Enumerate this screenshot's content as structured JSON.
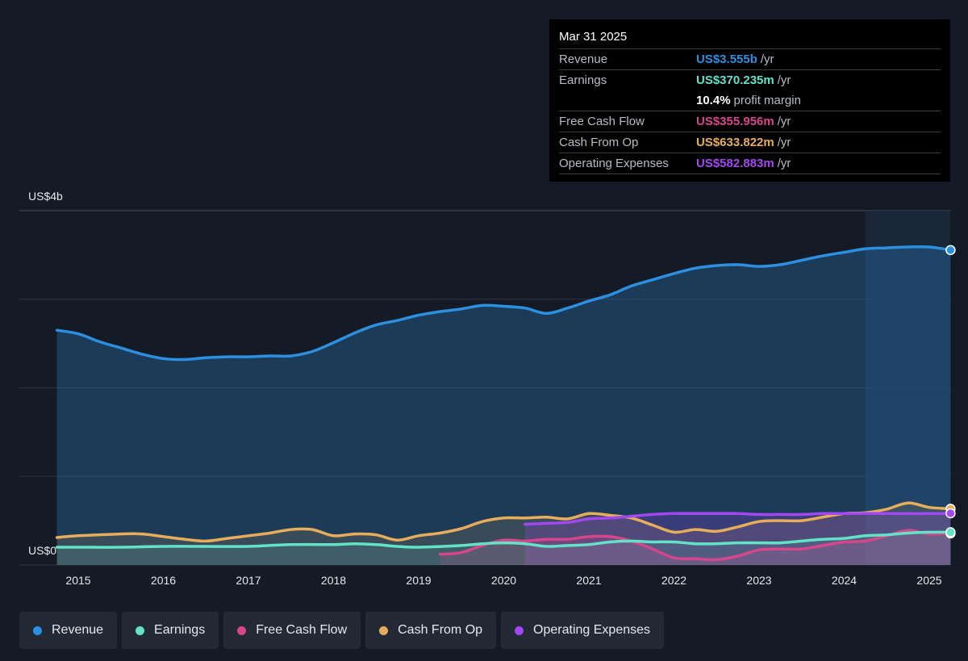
{
  "tooltip": {
    "date": "Mar 31 2025",
    "rows": [
      {
        "label": "Revenue",
        "value": "US$3.555b",
        "unit": "/yr",
        "color": "#2d8fe0"
      },
      {
        "label": "Earnings",
        "value": "US$370.235m",
        "unit": "/yr",
        "color": "#62e3c6"
      },
      {
        "label": "",
        "value": "10.4%",
        "unit": "profit margin",
        "color": "#ffffff"
      },
      {
        "label": "Free Cash Flow",
        "value": "US$355.956m",
        "unit": "/yr",
        "color": "#d6468b"
      },
      {
        "label": "Cash From Op",
        "value": "US$633.822m",
        "unit": "/yr",
        "color": "#e8ad5a"
      },
      {
        "label": "Operating Expenses",
        "value": "US$582.883m",
        "unit": "/yr",
        "color": "#a347f0"
      }
    ]
  },
  "chart_data": {
    "type": "area",
    "y_top_label": "US$4b",
    "y_bottom_label": "US$0",
    "ylim": [
      0,
      4.0
    ],
    "x_ticks": [
      "2015",
      "2016",
      "2017",
      "2018",
      "2019",
      "2020",
      "2021",
      "2022",
      "2023",
      "2024",
      "2025"
    ],
    "grid": true,
    "legend_position": "bottom",
    "series": [
      {
        "name": "Revenue",
        "color": "#2d8fe0",
        "points": [
          [
            2014.75,
            2.65
          ],
          [
            2015.0,
            2.61
          ],
          [
            2015.25,
            2.52
          ],
          [
            2015.5,
            2.45
          ],
          [
            2015.75,
            2.38
          ],
          [
            2016.0,
            2.33
          ],
          [
            2016.25,
            2.32
          ],
          [
            2016.5,
            2.34
          ],
          [
            2016.75,
            2.35
          ],
          [
            2017.0,
            2.35
          ],
          [
            2017.25,
            2.36
          ],
          [
            2017.5,
            2.36
          ],
          [
            2017.75,
            2.41
          ],
          [
            2018.0,
            2.51
          ],
          [
            2018.25,
            2.62
          ],
          [
            2018.5,
            2.71
          ],
          [
            2018.75,
            2.76
          ],
          [
            2019.0,
            2.82
          ],
          [
            2019.25,
            2.86
          ],
          [
            2019.5,
            2.89
          ],
          [
            2019.75,
            2.93
          ],
          [
            2020.0,
            2.92
          ],
          [
            2020.25,
            2.9
          ],
          [
            2020.5,
            2.84
          ],
          [
            2020.75,
            2.9
          ],
          [
            2021.0,
            2.98
          ],
          [
            2021.25,
            3.05
          ],
          [
            2021.5,
            3.15
          ],
          [
            2021.75,
            3.22
          ],
          [
            2022.0,
            3.29
          ],
          [
            2022.25,
            3.35
          ],
          [
            2022.5,
            3.38
          ],
          [
            2022.75,
            3.39
          ],
          [
            2023.0,
            3.37
          ],
          [
            2023.25,
            3.39
          ],
          [
            2023.5,
            3.44
          ],
          [
            2023.75,
            3.49
          ],
          [
            2024.0,
            3.53
          ],
          [
            2024.25,
            3.57
          ],
          [
            2024.5,
            3.58
          ],
          [
            2024.75,
            3.59
          ],
          [
            2025.0,
            3.59
          ],
          [
            2025.25,
            3.555
          ]
        ]
      },
      {
        "name": "Earnings",
        "color": "#62e3c6",
        "points": [
          [
            2014.75,
            0.2
          ],
          [
            2015.0,
            0.2
          ],
          [
            2015.5,
            0.2
          ],
          [
            2016.0,
            0.21
          ],
          [
            2016.5,
            0.21
          ],
          [
            2017.0,
            0.21
          ],
          [
            2017.5,
            0.23
          ],
          [
            2018.0,
            0.23
          ],
          [
            2018.25,
            0.24
          ],
          [
            2018.5,
            0.23
          ],
          [
            2018.75,
            0.21
          ],
          [
            2019.0,
            0.2
          ],
          [
            2019.5,
            0.22
          ],
          [
            2019.75,
            0.24
          ],
          [
            2020.0,
            0.25
          ],
          [
            2020.25,
            0.24
          ],
          [
            2020.5,
            0.21
          ],
          [
            2020.75,
            0.22
          ],
          [
            2021.0,
            0.23
          ],
          [
            2021.25,
            0.26
          ],
          [
            2021.5,
            0.27
          ],
          [
            2021.75,
            0.26
          ],
          [
            2022.0,
            0.26
          ],
          [
            2022.25,
            0.24
          ],
          [
            2022.5,
            0.24
          ],
          [
            2022.75,
            0.25
          ],
          [
            2023.0,
            0.25
          ],
          [
            2023.25,
            0.25
          ],
          [
            2023.5,
            0.27
          ],
          [
            2023.75,
            0.29
          ],
          [
            2024.0,
            0.3
          ],
          [
            2024.25,
            0.33
          ],
          [
            2024.5,
            0.34
          ],
          [
            2024.75,
            0.36
          ],
          [
            2025.0,
            0.37
          ],
          [
            2025.25,
            0.37
          ]
        ]
      },
      {
        "name": "Free Cash Flow",
        "color": "#d6468b",
        "points": [
          [
            2019.25,
            0.12
          ],
          [
            2019.5,
            0.14
          ],
          [
            2019.75,
            0.22
          ],
          [
            2020.0,
            0.28
          ],
          [
            2020.25,
            0.27
          ],
          [
            2020.5,
            0.29
          ],
          [
            2020.75,
            0.29
          ],
          [
            2021.0,
            0.32
          ],
          [
            2021.25,
            0.32
          ],
          [
            2021.5,
            0.27
          ],
          [
            2021.75,
            0.18
          ],
          [
            2022.0,
            0.08
          ],
          [
            2022.25,
            0.07
          ],
          [
            2022.5,
            0.06
          ],
          [
            2022.75,
            0.1
          ],
          [
            2023.0,
            0.17
          ],
          [
            2023.25,
            0.18
          ],
          [
            2023.5,
            0.18
          ],
          [
            2023.75,
            0.22
          ],
          [
            2024.0,
            0.26
          ],
          [
            2024.25,
            0.27
          ],
          [
            2024.5,
            0.33
          ],
          [
            2024.75,
            0.39
          ],
          [
            2025.0,
            0.35
          ],
          [
            2025.25,
            0.356
          ]
        ]
      },
      {
        "name": "Cash From Op",
        "color": "#e8ad5a",
        "points": [
          [
            2014.75,
            0.31
          ],
          [
            2015.0,
            0.33
          ],
          [
            2015.5,
            0.35
          ],
          [
            2015.75,
            0.35
          ],
          [
            2016.0,
            0.32
          ],
          [
            2016.25,
            0.29
          ],
          [
            2016.5,
            0.27
          ],
          [
            2016.75,
            0.3
          ],
          [
            2017.0,
            0.33
          ],
          [
            2017.25,
            0.36
          ],
          [
            2017.5,
            0.4
          ],
          [
            2017.75,
            0.4
          ],
          [
            2018.0,
            0.33
          ],
          [
            2018.25,
            0.35
          ],
          [
            2018.5,
            0.34
          ],
          [
            2018.75,
            0.28
          ],
          [
            2019.0,
            0.33
          ],
          [
            2019.25,
            0.36
          ],
          [
            2019.5,
            0.41
          ],
          [
            2019.75,
            0.49
          ],
          [
            2020.0,
            0.53
          ],
          [
            2020.25,
            0.53
          ],
          [
            2020.5,
            0.54
          ],
          [
            2020.75,
            0.52
          ],
          [
            2021.0,
            0.58
          ],
          [
            2021.25,
            0.56
          ],
          [
            2021.5,
            0.53
          ],
          [
            2021.75,
            0.45
          ],
          [
            2022.0,
            0.37
          ],
          [
            2022.25,
            0.4
          ],
          [
            2022.5,
            0.38
          ],
          [
            2022.75,
            0.43
          ],
          [
            2023.0,
            0.49
          ],
          [
            2023.25,
            0.5
          ],
          [
            2023.5,
            0.5
          ],
          [
            2023.75,
            0.54
          ],
          [
            2024.0,
            0.58
          ],
          [
            2024.25,
            0.59
          ],
          [
            2024.5,
            0.63
          ],
          [
            2024.75,
            0.7
          ],
          [
            2025.0,
            0.65
          ],
          [
            2025.25,
            0.634
          ]
        ]
      },
      {
        "name": "Operating Expenses",
        "color": "#a347f0",
        "points": [
          [
            2020.25,
            0.46
          ],
          [
            2020.5,
            0.47
          ],
          [
            2020.75,
            0.48
          ],
          [
            2021.0,
            0.52
          ],
          [
            2021.25,
            0.53
          ],
          [
            2021.5,
            0.55
          ],
          [
            2021.75,
            0.57
          ],
          [
            2022.0,
            0.58
          ],
          [
            2022.25,
            0.58
          ],
          [
            2022.5,
            0.58
          ],
          [
            2022.75,
            0.58
          ],
          [
            2023.0,
            0.57
          ],
          [
            2023.25,
            0.57
          ],
          [
            2023.5,
            0.57
          ],
          [
            2023.75,
            0.58
          ],
          [
            2024.0,
            0.58
          ],
          [
            2024.25,
            0.58
          ],
          [
            2024.5,
            0.58
          ],
          [
            2024.75,
            0.58
          ],
          [
            2025.0,
            0.58
          ],
          [
            2025.25,
            0.583
          ]
        ]
      }
    ]
  },
  "legend": {
    "items": [
      {
        "label": "Revenue",
        "color": "#2d8fe0"
      },
      {
        "label": "Earnings",
        "color": "#62e3c6"
      },
      {
        "label": "Free Cash Flow",
        "color": "#d6468b"
      },
      {
        "label": "Cash From Op",
        "color": "#e8ad5a"
      },
      {
        "label": "Operating Expenses",
        "color": "#a347f0"
      }
    ]
  }
}
